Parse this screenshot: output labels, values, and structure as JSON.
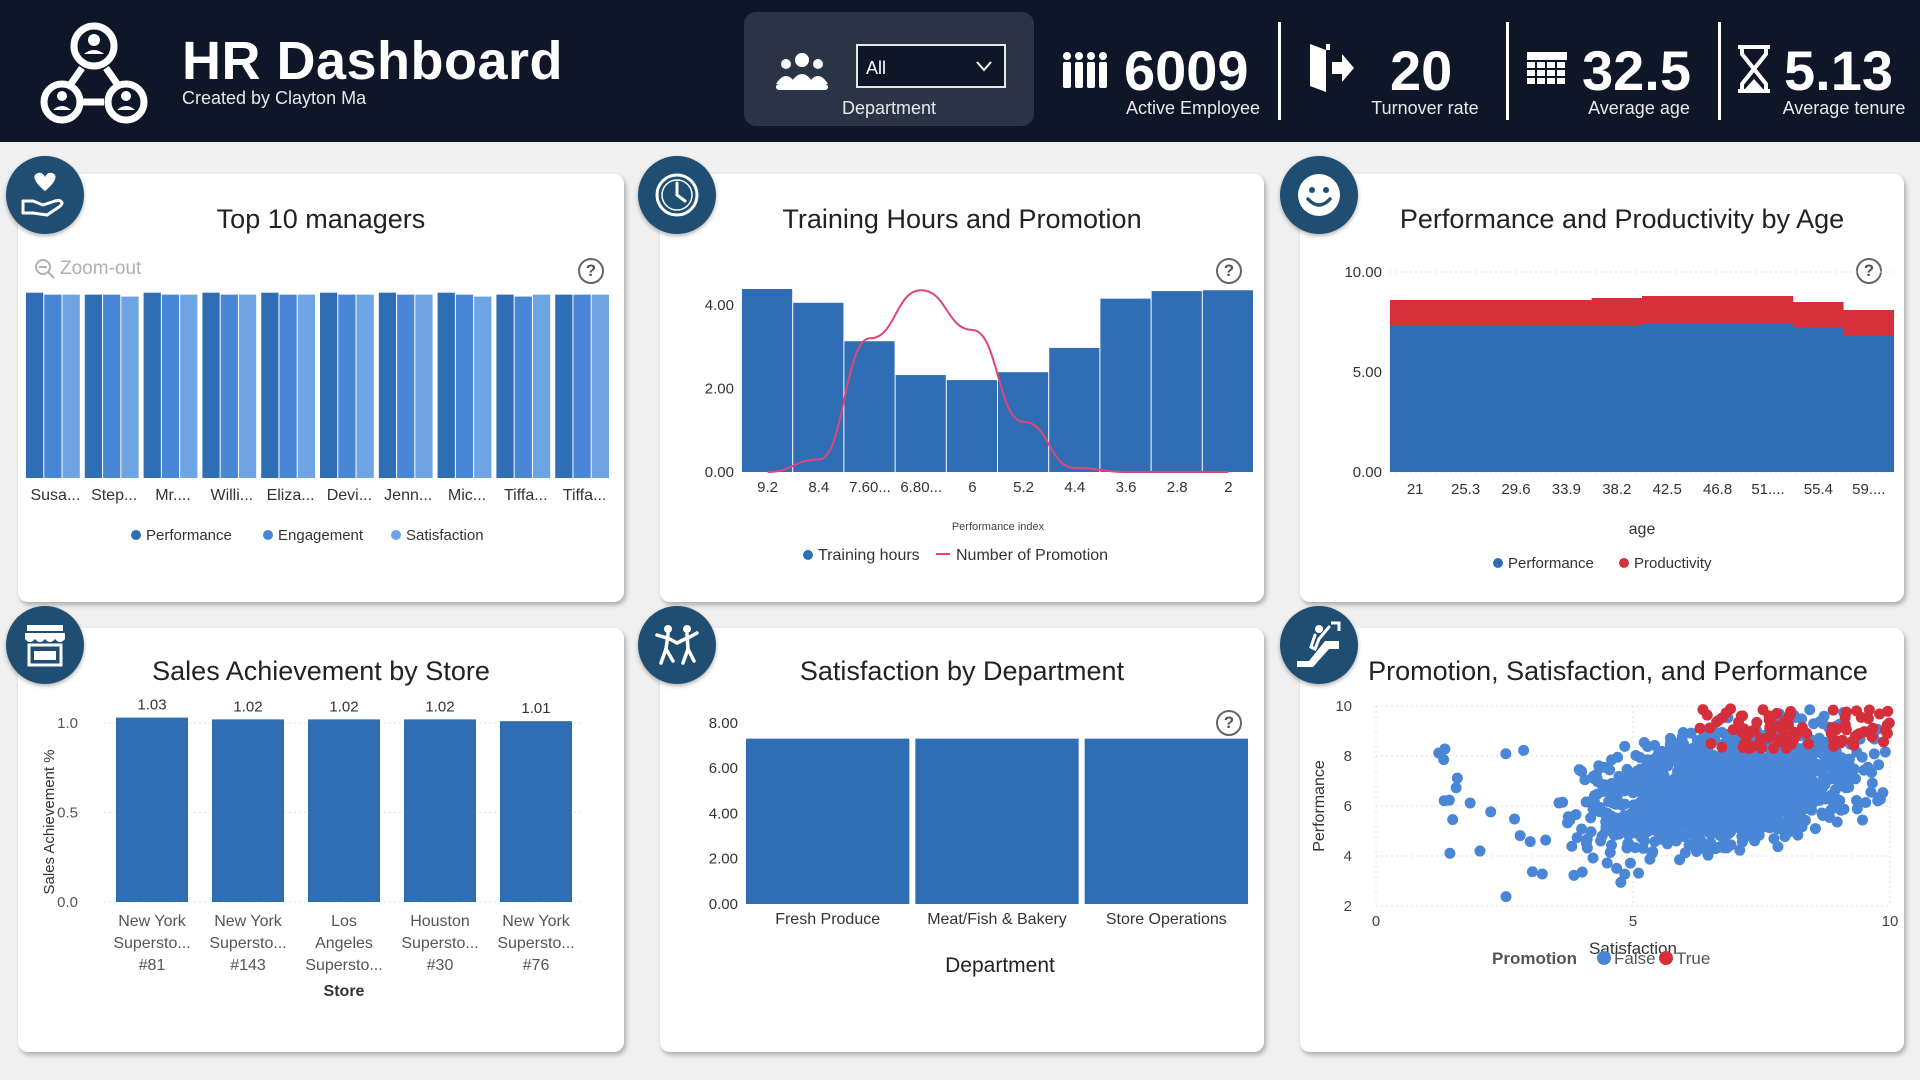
{
  "header": {
    "title": "HR Dashboard",
    "subtitle": "Created by Clayton Ma",
    "slicer": {
      "selected": "All",
      "label": "Department"
    },
    "kpis": [
      {
        "value": "6009",
        "label": "Active Employee",
        "icon": "group-people-icon"
      },
      {
        "value": "20",
        "label": "Turnover rate",
        "icon": "exit-door-icon"
      },
      {
        "value": "32.5",
        "label": "Average age",
        "icon": "calendar-icon"
      },
      {
        "value": "5.13",
        "label": "Average tenure",
        "icon": "hourglass-icon"
      }
    ]
  },
  "colors": {
    "header_bg": "#0e1628",
    "badge": "#1f4e72",
    "dark_blue": "#2f6db5",
    "mid_blue": "#4a86d6",
    "light_blue": "#6ea4e4",
    "red": "#d42f3a",
    "pink": "#e0457a"
  },
  "top_managers": {
    "title": "Top 10 managers",
    "zoom_label": "Zoom-out",
    "help": "?"
  },
  "training": {
    "title": "Training Hours and Promotion",
    "help": "?"
  },
  "perf_age": {
    "title": "Performance and Productivity by Age",
    "help": "?"
  },
  "sales": {
    "title": "Sales Achievement by Store"
  },
  "satisfaction": {
    "title": "Satisfaction by Department",
    "help": "?"
  },
  "promo_scatter": {
    "title": "Promotion, Satisfaction, and Performance"
  },
  "chart_data": [
    {
      "id": "top_managers",
      "type": "bar",
      "title": "Top 10 managers",
      "categories": [
        "Susa...",
        "Step...",
        "Mr....",
        "Willi...",
        "Eliza...",
        "Devi...",
        "Jenn...",
        "Mic...",
        "Tiffa...",
        "Tiffa..."
      ],
      "series": [
        {
          "name": "Performance",
          "values": [
            9.6,
            9.5,
            9.6,
            9.6,
            9.6,
            9.6,
            9.6,
            9.6,
            9.5,
            9.5
          ]
        },
        {
          "name": "Engagement",
          "values": [
            9.5,
            9.5,
            9.5,
            9.5,
            9.5,
            9.5,
            9.5,
            9.5,
            9.4,
            9.5
          ]
        },
        {
          "name": "Satisfaction",
          "values": [
            9.5,
            9.4,
            9.5,
            9.5,
            9.5,
            9.5,
            9.5,
            9.4,
            9.5,
            9.5
          ]
        }
      ],
      "ylim": [
        0,
        10
      ],
      "legend": "bottom"
    },
    {
      "id": "training",
      "type": "bar",
      "title": "Training Hours and Promotion",
      "xlabel": "Performance index",
      "x_ticks": [
        "9.2",
        "8.4",
        "7.60...",
        "6.80...",
        "6",
        "5.2",
        "4.4",
        "3.6",
        "2.8",
        "2"
      ],
      "y_ticks": [
        "4.00",
        "2.00",
        "0.00"
      ],
      "ylim": [
        0,
        4.5
      ],
      "series": [
        {
          "name": "Training hours",
          "type": "bar",
          "values": [
            4.38,
            4.05,
            3.13,
            2.32,
            2.2,
            2.39,
            2.97,
            4.15,
            4.33,
            4.35
          ]
        },
        {
          "name": "Number of Promotion",
          "type": "line",
          "values": [
            0.0,
            0.3,
            3.2,
            4.35,
            3.4,
            1.2,
            0.1,
            0.0,
            0.0,
            0.0
          ]
        }
      ],
      "legend": "bottom"
    },
    {
      "id": "perf_age",
      "type": "area",
      "title": "Performance and Productivity by Age",
      "xlabel": "age",
      "x_ticks": [
        "21",
        "25.3",
        "29.6",
        "33.9",
        "38.2",
        "42.5",
        "46.8",
        "51....",
        "55.4",
        "59...."
      ],
      "y_ticks": [
        "10.00",
        "5.00",
        "0.00"
      ],
      "ylim": [
        0,
        10
      ],
      "stacked": true,
      "series": [
        {
          "name": "Performance",
          "values": [
            7.3,
            7.3,
            7.3,
            7.3,
            7.3,
            7.4,
            7.4,
            7.4,
            7.2,
            6.8
          ]
        },
        {
          "name": "Productivity",
          "values": [
            1.3,
            1.3,
            1.3,
            1.3,
            1.4,
            1.4,
            1.4,
            1.4,
            1.3,
            1.3
          ]
        }
      ],
      "legend": "bottom"
    },
    {
      "id": "sales",
      "type": "bar",
      "title": "Sales Achievement by Store",
      "xlabel": "Store",
      "ylabel": "Sales Achievement %",
      "categories": [
        [
          "New York",
          "Supersto...",
          "#81"
        ],
        [
          "New York",
          "Supersto...",
          "#143"
        ],
        [
          "Los",
          "Angeles",
          "Supersto..."
        ],
        [
          "Houston",
          "Supersto...",
          "#30"
        ],
        [
          "New York",
          "Supersto...",
          "#76"
        ]
      ],
      "values": [
        1.03,
        1.02,
        1.02,
        1.02,
        1.01
      ],
      "data_labels": [
        "1.03",
        "1.02",
        "1.02",
        "1.02",
        "1.01"
      ],
      "y_ticks": [
        "1.0",
        "0.5",
        "0.0"
      ],
      "ylim": [
        0,
        1.05
      ]
    },
    {
      "id": "satisfaction",
      "type": "bar",
      "title": "Satisfaction by Department",
      "xlabel": "Department",
      "categories": [
        "Fresh Produce",
        "Meat/Fish & Bakery",
        "Store Operations"
      ],
      "values": [
        7.3,
        7.3,
        7.3
      ],
      "y_ticks": [
        "8.00",
        "6.00",
        "4.00",
        "2.00",
        "0.00"
      ],
      "ylim": [
        0,
        8.3
      ]
    },
    {
      "id": "promo_scatter",
      "type": "scatter",
      "title": "Promotion, Satisfaction, and Performance",
      "xlabel": "Satisfaction",
      "ylabel": "Performance",
      "legend_title": "Promotion",
      "x_ticks": [
        "0",
        "5",
        "10"
      ],
      "y_ticks": [
        "10",
        "8",
        "6",
        "4",
        "2"
      ],
      "xlim": [
        0,
        10
      ],
      "ylim": [
        2,
        10
      ],
      "series": [
        {
          "name": "False",
          "cluster": {
            "x_range": [
              1,
              10
            ],
            "y_range": [
              2.2,
              10
            ],
            "center": [
              6.8,
              6.5
            ]
          }
        },
        {
          "name": "True",
          "cluster": {
            "x_range": [
              5.5,
              10
            ],
            "y_range": [
              8.2,
              10
            ],
            "center": [
              8.5,
              8.7
            ]
          }
        }
      ],
      "legend": "bottom"
    }
  ]
}
